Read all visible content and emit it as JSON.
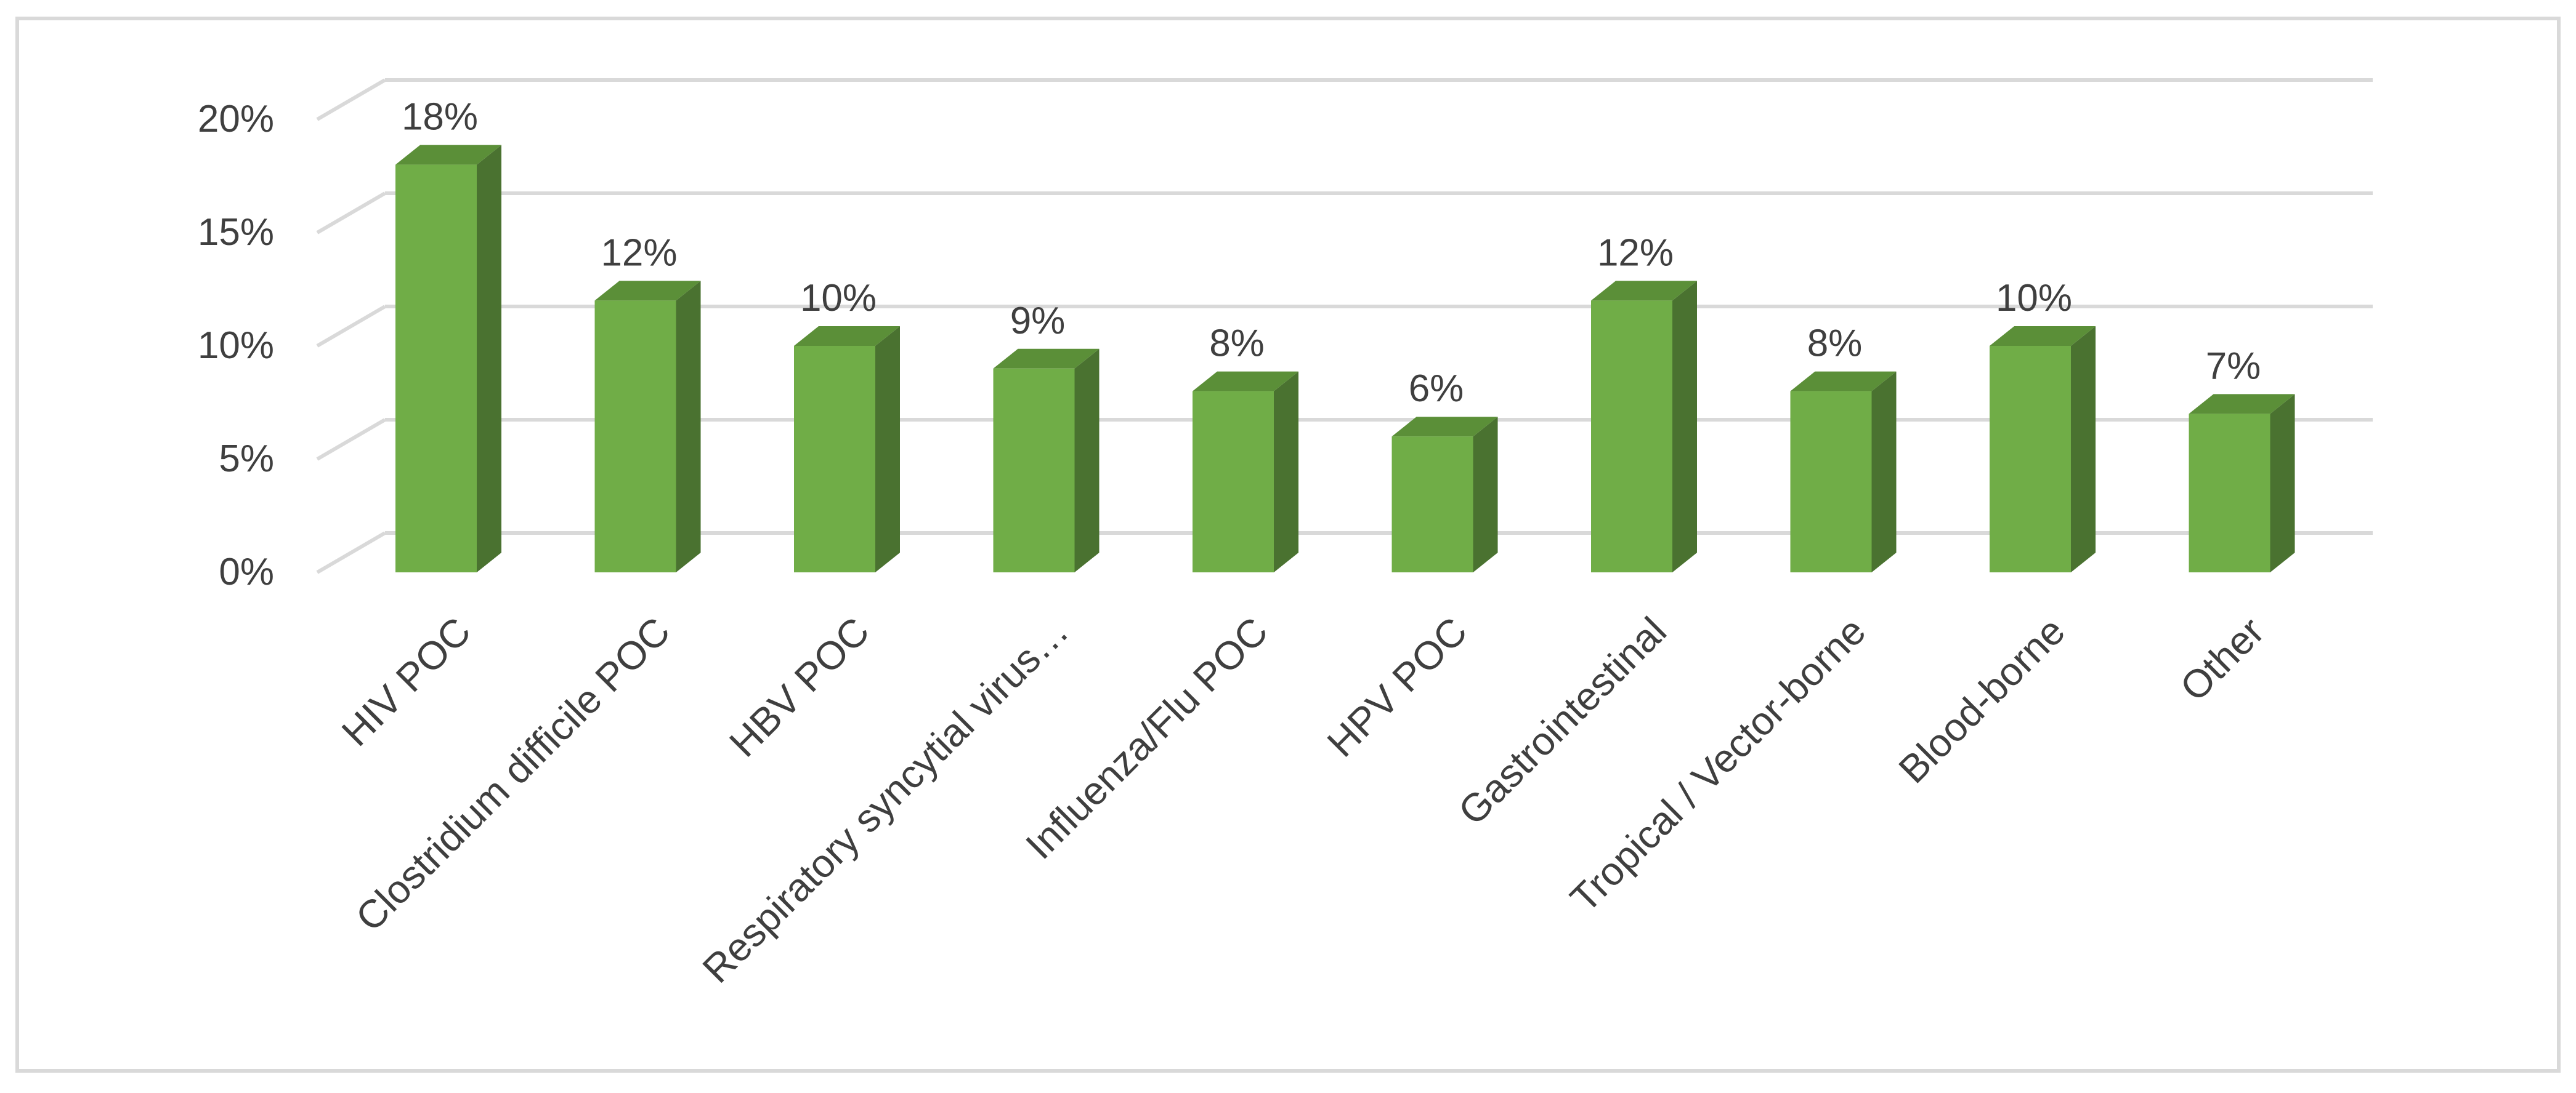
{
  "colors": {
    "bar_front": "#70ad47",
    "bar_side": "#4a7230",
    "bar_top": "#5b8f38",
    "gridline": "#d9d9d9",
    "text": "#3f3f3f",
    "border": "#d9d9d9"
  },
  "chart_data": {
    "type": "bar",
    "style": "3d-column",
    "title": "",
    "xlabel": "",
    "ylabel": "",
    "ylim": [
      0,
      20
    ],
    "yticks": [
      "0%",
      "5%",
      "10%",
      "15%",
      "20%"
    ],
    "ytick_values": [
      0,
      5,
      10,
      15,
      20
    ],
    "grid": true,
    "legend": "none",
    "categories": [
      "HIV POC",
      "Clostridium difficile POC",
      "HBV POC",
      "Respiratory syncytial virus…",
      "Influenza/Flu POC",
      "HPV POC",
      "Gastrointestinal",
      "Tropical / Vector-borne",
      "Blood-borne",
      "Other"
    ],
    "values": [
      18,
      12,
      10,
      9,
      8,
      6,
      12,
      8,
      10,
      7
    ],
    "data_labels": [
      "18%",
      "12%",
      "10%",
      "9%",
      "8%",
      "6%",
      "12%",
      "8%",
      "10%",
      "7%"
    ]
  }
}
